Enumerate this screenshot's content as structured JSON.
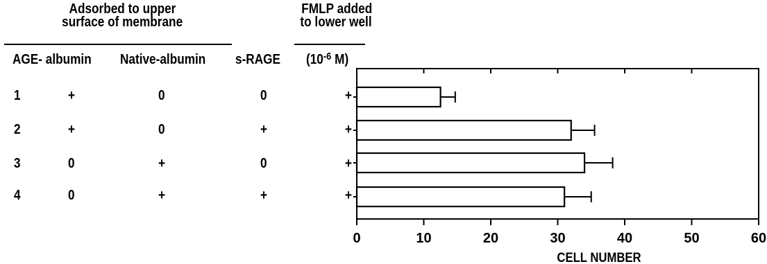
{
  "header": {
    "group1_line1": "Adsorbed to upper",
    "group1_line2": "surface of membrane",
    "group2_line1": "FMLP added",
    "group2_line2": "to lower well"
  },
  "columns": {
    "age": "AGE- albumin",
    "native": "Native-albumin",
    "srage": "s-RAGE",
    "fmlp_prefix": "(10",
    "fmlp_exp": "-6",
    "fmlp_suffix": " M)"
  },
  "rows": [
    {
      "num": "1",
      "age": "+",
      "native": "0",
      "srage": "0",
      "fmlp": "+"
    },
    {
      "num": "2",
      "age": "+",
      "native": "0",
      "srage": "+",
      "fmlp": "+"
    },
    {
      "num": "3",
      "age": "0",
      "native": "+",
      "srage": "0",
      "fmlp": "+"
    },
    {
      "num": "4",
      "age": "0",
      "native": "+",
      "srage": "+",
      "fmlp": "+"
    }
  ],
  "chart_data": {
    "type": "bar",
    "orientation": "horizontal",
    "categories": [
      "1",
      "2",
      "3",
      "4"
    ],
    "values": [
      12.5,
      32,
      34,
      31
    ],
    "errors": [
      2.2,
      3.5,
      4.2,
      4.0
    ],
    "xlabel": "CELL NUMBER",
    "xlim": [
      0,
      60
    ],
    "xticks": [
      "0",
      "10",
      "20",
      "30",
      "40",
      "50",
      "60"
    ],
    "grid": false,
    "bar_color": "#ffffff",
    "stroke_color": "#000000"
  }
}
